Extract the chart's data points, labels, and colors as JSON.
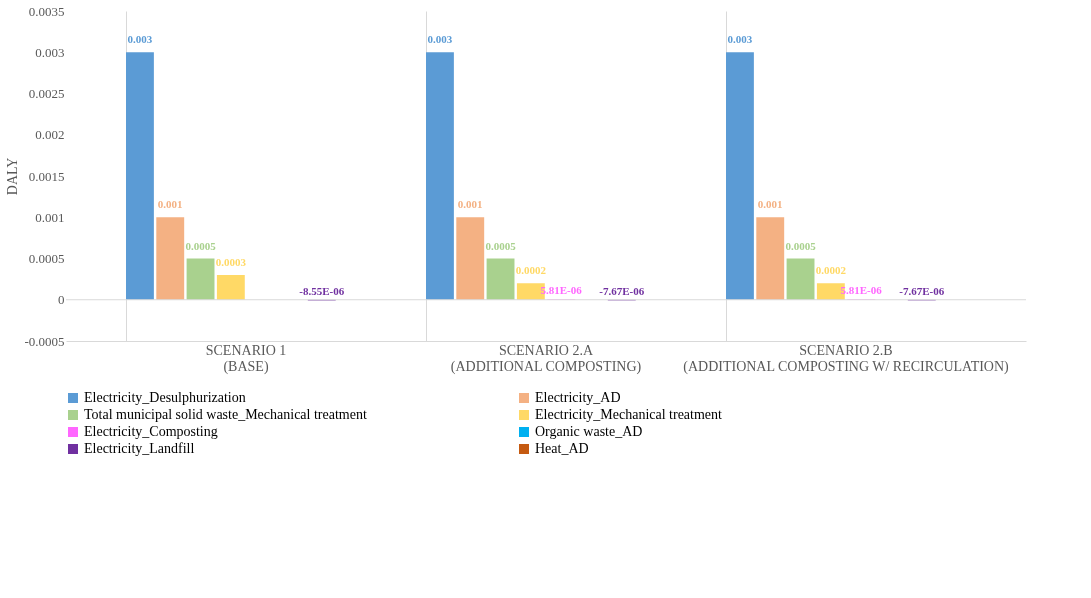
{
  "chart_data": {
    "type": "bar",
    "ylabel": "DALY",
    "categories": [
      "SCENARIO 1 (BASE)",
      "SCENARIO 2.A (ADDITIONAL COMPOSTING)",
      "SCENARIO 2.B (ADDITIONAL COMPOSTING W/ RECIRCULATION)"
    ],
    "series": [
      {
        "name": "Electricity_Desulphurization",
        "color": "#5b9bd5",
        "values": [
          0.003,
          0.003,
          0.003
        ],
        "value_labels": [
          "0.003",
          "0.003",
          "0.003"
        ]
      },
      {
        "name": "Electricity_AD",
        "color": "#f4b183",
        "values": [
          0.001,
          0.001,
          0.001
        ],
        "value_labels": [
          "0.001",
          "0.001",
          "0.001"
        ]
      },
      {
        "name": "Total municipal solid waste_Mechanical treatment",
        "color": "#a9d18e",
        "values": [
          0.0005,
          0.0005,
          0.0005
        ],
        "value_labels": [
          "0.0005",
          "0.0005",
          "0.0005"
        ]
      },
      {
        "name": "Electricity_Mechanical treatment",
        "color": "#ffd966",
        "values": [
          0.0003,
          0.0002,
          0.0002
        ],
        "value_labels": [
          "0.0003",
          "0.0002",
          "0.0002"
        ]
      },
      {
        "name": "Electricity_Composting",
        "color": "#ff66ff",
        "values": [
          null,
          5.81e-06,
          5.81e-06
        ],
        "value_labels": [
          null,
          "5.81E-06",
          "5.81E-06"
        ]
      },
      {
        "name": "Organic waste_AD",
        "color": "#00b0f0",
        "values": [
          null,
          null,
          null
        ]
      },
      {
        "name": "Electricity_Landfill",
        "color": "#7030a0",
        "values": [
          -8.55e-06,
          -7.67e-06,
          -7.67e-06
        ],
        "value_labels": [
          "-8.55E-06",
          "-7.67E-06",
          "-7.67E-06"
        ]
      },
      {
        "name": "Heat_AD",
        "color": "#c55a11",
        "values": [
          null,
          null,
          null
        ]
      }
    ],
    "ylim": [
      -0.0005,
      0.0035
    ],
    "yticks": [
      -0.0005,
      0,
      0.0005,
      0.001,
      0.0015,
      0.002,
      0.0025,
      0.003,
      0.0035
    ],
    "ref_lines": [
      {
        "axis": "y",
        "value": 0,
        "color": "#d9d9d9"
      }
    ],
    "grid": "x",
    "legend": "bottom"
  }
}
